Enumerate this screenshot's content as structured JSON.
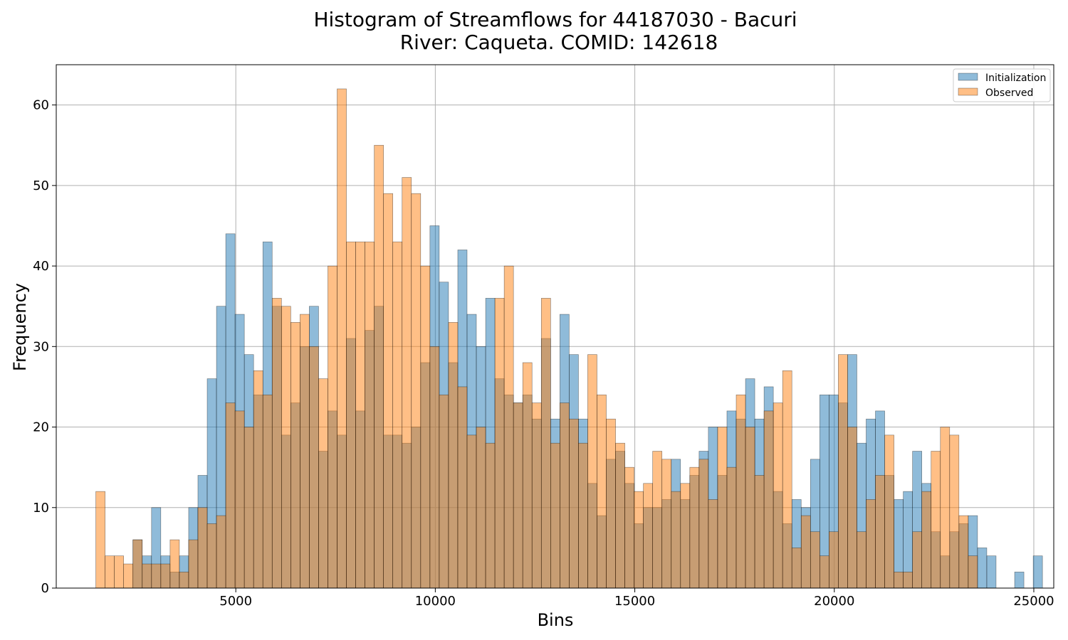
{
  "chart_data": {
    "type": "bar",
    "title_line1": "Histogram of Streamflows for 44187030 - Bacuri",
    "title_line2": "River: Caqueta. COMID: 142618",
    "xlabel": "Bins",
    "ylabel": "Frequency",
    "xlim": [
      500,
      25500
    ],
    "ylim": [
      0,
      65
    ],
    "xticks": [
      5000,
      10000,
      15000,
      20000,
      25000
    ],
    "yticks": [
      0,
      10,
      20,
      30,
      40,
      50,
      60
    ],
    "grid": true,
    "legend_position": "top-right",
    "bin_start": 1492,
    "bin_width": 232.6,
    "series": [
      {
        "name": "Initialization",
        "color": "#1f77b4",
        "start_bin": 4,
        "values": [
          6,
          4,
          10,
          4,
          2,
          4,
          10,
          14,
          26,
          35,
          44,
          34,
          29,
          24,
          43,
          35,
          19,
          23,
          30,
          35,
          17,
          22,
          19,
          31,
          22,
          32,
          35,
          19,
          19,
          18,
          20,
          28,
          45,
          38,
          28,
          42,
          34,
          30,
          36,
          26,
          24,
          23,
          24,
          21,
          31,
          21,
          34,
          29,
          21,
          13,
          9,
          16,
          17,
          13,
          8,
          10,
          10,
          11,
          16,
          11,
          14,
          17,
          20,
          14,
          22,
          21,
          26,
          21,
          25,
          12,
          8,
          11,
          10,
          16,
          24,
          24,
          23,
          29,
          18,
          21,
          22,
          14,
          11,
          12,
          17,
          13,
          7,
          4,
          7,
          8,
          9,
          5,
          4,
          0,
          0,
          2,
          0,
          4
        ]
      },
      {
        "name": "Observed",
        "color": "#ff7f0e",
        "start_bin": 0,
        "values": [
          12,
          4,
          4,
          3,
          6,
          3,
          3,
          3,
          6,
          2,
          6,
          10,
          8,
          9,
          23,
          22,
          20,
          27,
          24,
          36,
          35,
          33,
          34,
          30,
          26,
          40,
          62,
          43,
          43,
          43,
          55,
          49,
          43,
          51,
          49,
          40,
          30,
          24,
          33,
          25,
          19,
          20,
          18,
          36,
          40,
          23,
          28,
          23,
          36,
          18,
          23,
          21,
          18,
          29,
          24,
          21,
          18,
          15,
          12,
          13,
          17,
          16,
          12,
          13,
          15,
          16,
          11,
          20,
          15,
          24,
          20,
          14,
          22,
          23,
          27,
          5,
          9,
          7,
          4,
          7,
          29,
          20,
          7,
          11,
          14,
          19,
          2,
          2,
          7,
          12,
          17,
          20,
          19,
          9,
          4
        ]
      }
    ]
  }
}
